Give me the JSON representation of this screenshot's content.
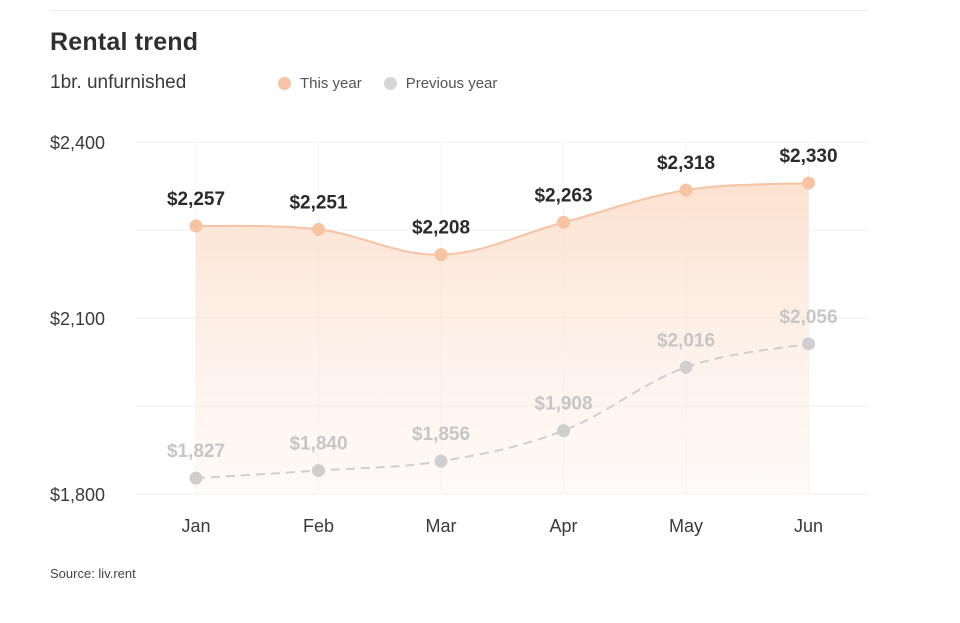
{
  "title": "Rental trend",
  "subtitle": "1br. unfurnished",
  "legend": [
    {
      "label": "This year",
      "color": "#f6c3a3"
    },
    {
      "label": "Previous year",
      "color": "#d6d6d6"
    }
  ],
  "source": "Source: liv.rent",
  "chart_data": {
    "type": "area",
    "categories": [
      "Jan",
      "Feb",
      "Mar",
      "Apr",
      "May",
      "Jun"
    ],
    "series": [
      {
        "name": "This year",
        "values": [
          2257,
          2251,
          2208,
          2263,
          2318,
          2330
        ],
        "labels": [
          "$2,257",
          "$2,251",
          "$2,208",
          "$2,263",
          "$2,318",
          "$2,330"
        ],
        "color": "#f6c3a3",
        "line_style": "solid",
        "label_color": "#2b2b2b"
      },
      {
        "name": "Previous year",
        "values": [
          1827,
          1840,
          1856,
          1908,
          2016,
          2056
        ],
        "labels": [
          "$1,827",
          "$1,840",
          "$1,856",
          "$1,908",
          "$2,016",
          "$2,056"
        ],
        "color": "#cfcfcf",
        "line_style": "dashed",
        "label_color": "#c6c6c6"
      }
    ],
    "yticks": [
      1800,
      2100,
      2400
    ],
    "ytick_labels": [
      "$1,800",
      "$2,100",
      "$2,400"
    ],
    "ylim": [
      1800,
      2400
    ],
    "grid": true
  }
}
